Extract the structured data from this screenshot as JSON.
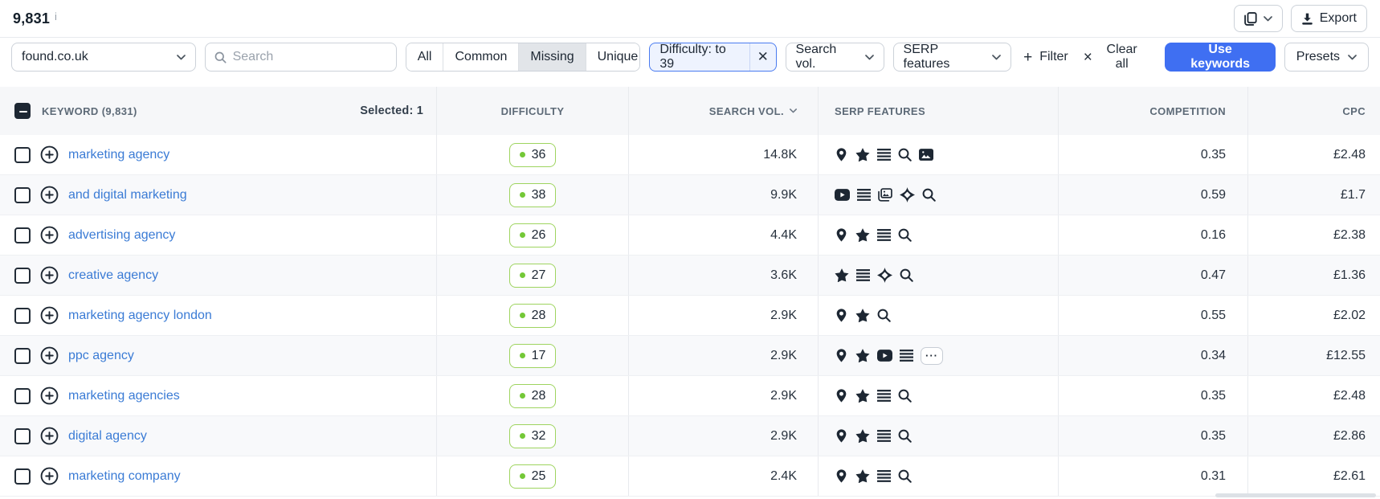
{
  "colors": {
    "accent": "#3f6ff2",
    "link": "#3a7bd5",
    "dark": "#1d2733",
    "badge_border": "#9ed45f",
    "badge_dot": "#74c837",
    "chip_border": "#4a7bf0",
    "chip_bg": "#eef3fe",
    "head_bg": "#f6f7f9"
  },
  "topbar": {
    "results_count": "9,831",
    "info_icon": "info-icon",
    "copy_button_icon": "copy-icon",
    "export_label": "Export",
    "export_icon": "download-icon"
  },
  "toolbar": {
    "domain_select": {
      "value": "found.co.uk"
    },
    "search": {
      "placeholder": "Search"
    },
    "segments": [
      "All",
      "Common",
      "Missing",
      "Unique"
    ],
    "active_segment": "Missing",
    "filter_chip": {
      "label": "Difficulty: to 39",
      "close_icon": "close-icon"
    },
    "search_vol_dropdown": "Search vol.",
    "serp_features_dropdown": "SERP features",
    "filter_button": {
      "symbol": "+",
      "label": "Filter"
    },
    "clear_all_button": {
      "symbol": "×",
      "label": "Clear all"
    },
    "use_keywords_label": "Use keywords",
    "presets_label": "Presets"
  },
  "table": {
    "columns": {
      "keyword": "KEYWORD (9,831)",
      "difficulty": "DIFFICULTY",
      "search_vol": "SEARCH VOL.",
      "serp_features": "SERP FEATURES",
      "competition": "COMPETITION",
      "cpc": "CPC"
    },
    "selected_label": "Selected: 1",
    "rows": [
      {
        "keyword": "marketing agency",
        "difficulty": "36",
        "search_vol": "14.8K",
        "serp_features": [
          "location-pin",
          "star",
          "list",
          "search",
          "image"
        ],
        "competition": "0.35",
        "cpc": "£2.48"
      },
      {
        "keyword": "and digital marketing",
        "difficulty": "38",
        "search_vol": "9.9K",
        "serp_features": [
          "video",
          "list",
          "images",
          "sparkle",
          "search"
        ],
        "competition": "0.59",
        "cpc": "£1.7"
      },
      {
        "keyword": "advertising agency",
        "difficulty": "26",
        "search_vol": "4.4K",
        "serp_features": [
          "location-pin",
          "star",
          "list",
          "search"
        ],
        "competition": "0.16",
        "cpc": "£2.38"
      },
      {
        "keyword": "creative agency",
        "difficulty": "27",
        "search_vol": "3.6K",
        "serp_features": [
          "star",
          "list",
          "sparkle",
          "search"
        ],
        "competition": "0.47",
        "cpc": "£1.36"
      },
      {
        "keyword": "marketing agency london",
        "difficulty": "28",
        "search_vol": "2.9K",
        "serp_features": [
          "location-pin",
          "star",
          "search"
        ],
        "competition": "0.55",
        "cpc": "£2.02"
      },
      {
        "keyword": "ppc agency",
        "difficulty": "17",
        "search_vol": "2.9K",
        "serp_features": [
          "location-pin",
          "star",
          "video",
          "list",
          "more"
        ],
        "competition": "0.34",
        "cpc": "£12.55"
      },
      {
        "keyword": "marketing agencies",
        "difficulty": "28",
        "search_vol": "2.9K",
        "serp_features": [
          "location-pin",
          "star",
          "list",
          "search"
        ],
        "competition": "0.35",
        "cpc": "£2.48"
      },
      {
        "keyword": "digital agency",
        "difficulty": "32",
        "search_vol": "2.9K",
        "serp_features": [
          "location-pin",
          "star",
          "list",
          "search"
        ],
        "competition": "0.35",
        "cpc": "£2.86"
      },
      {
        "keyword": "marketing company",
        "difficulty": "25",
        "search_vol": "2.4K",
        "serp_features": [
          "location-pin",
          "star",
          "list",
          "search"
        ],
        "competition": "0.31",
        "cpc": "£2.61"
      }
    ]
  }
}
